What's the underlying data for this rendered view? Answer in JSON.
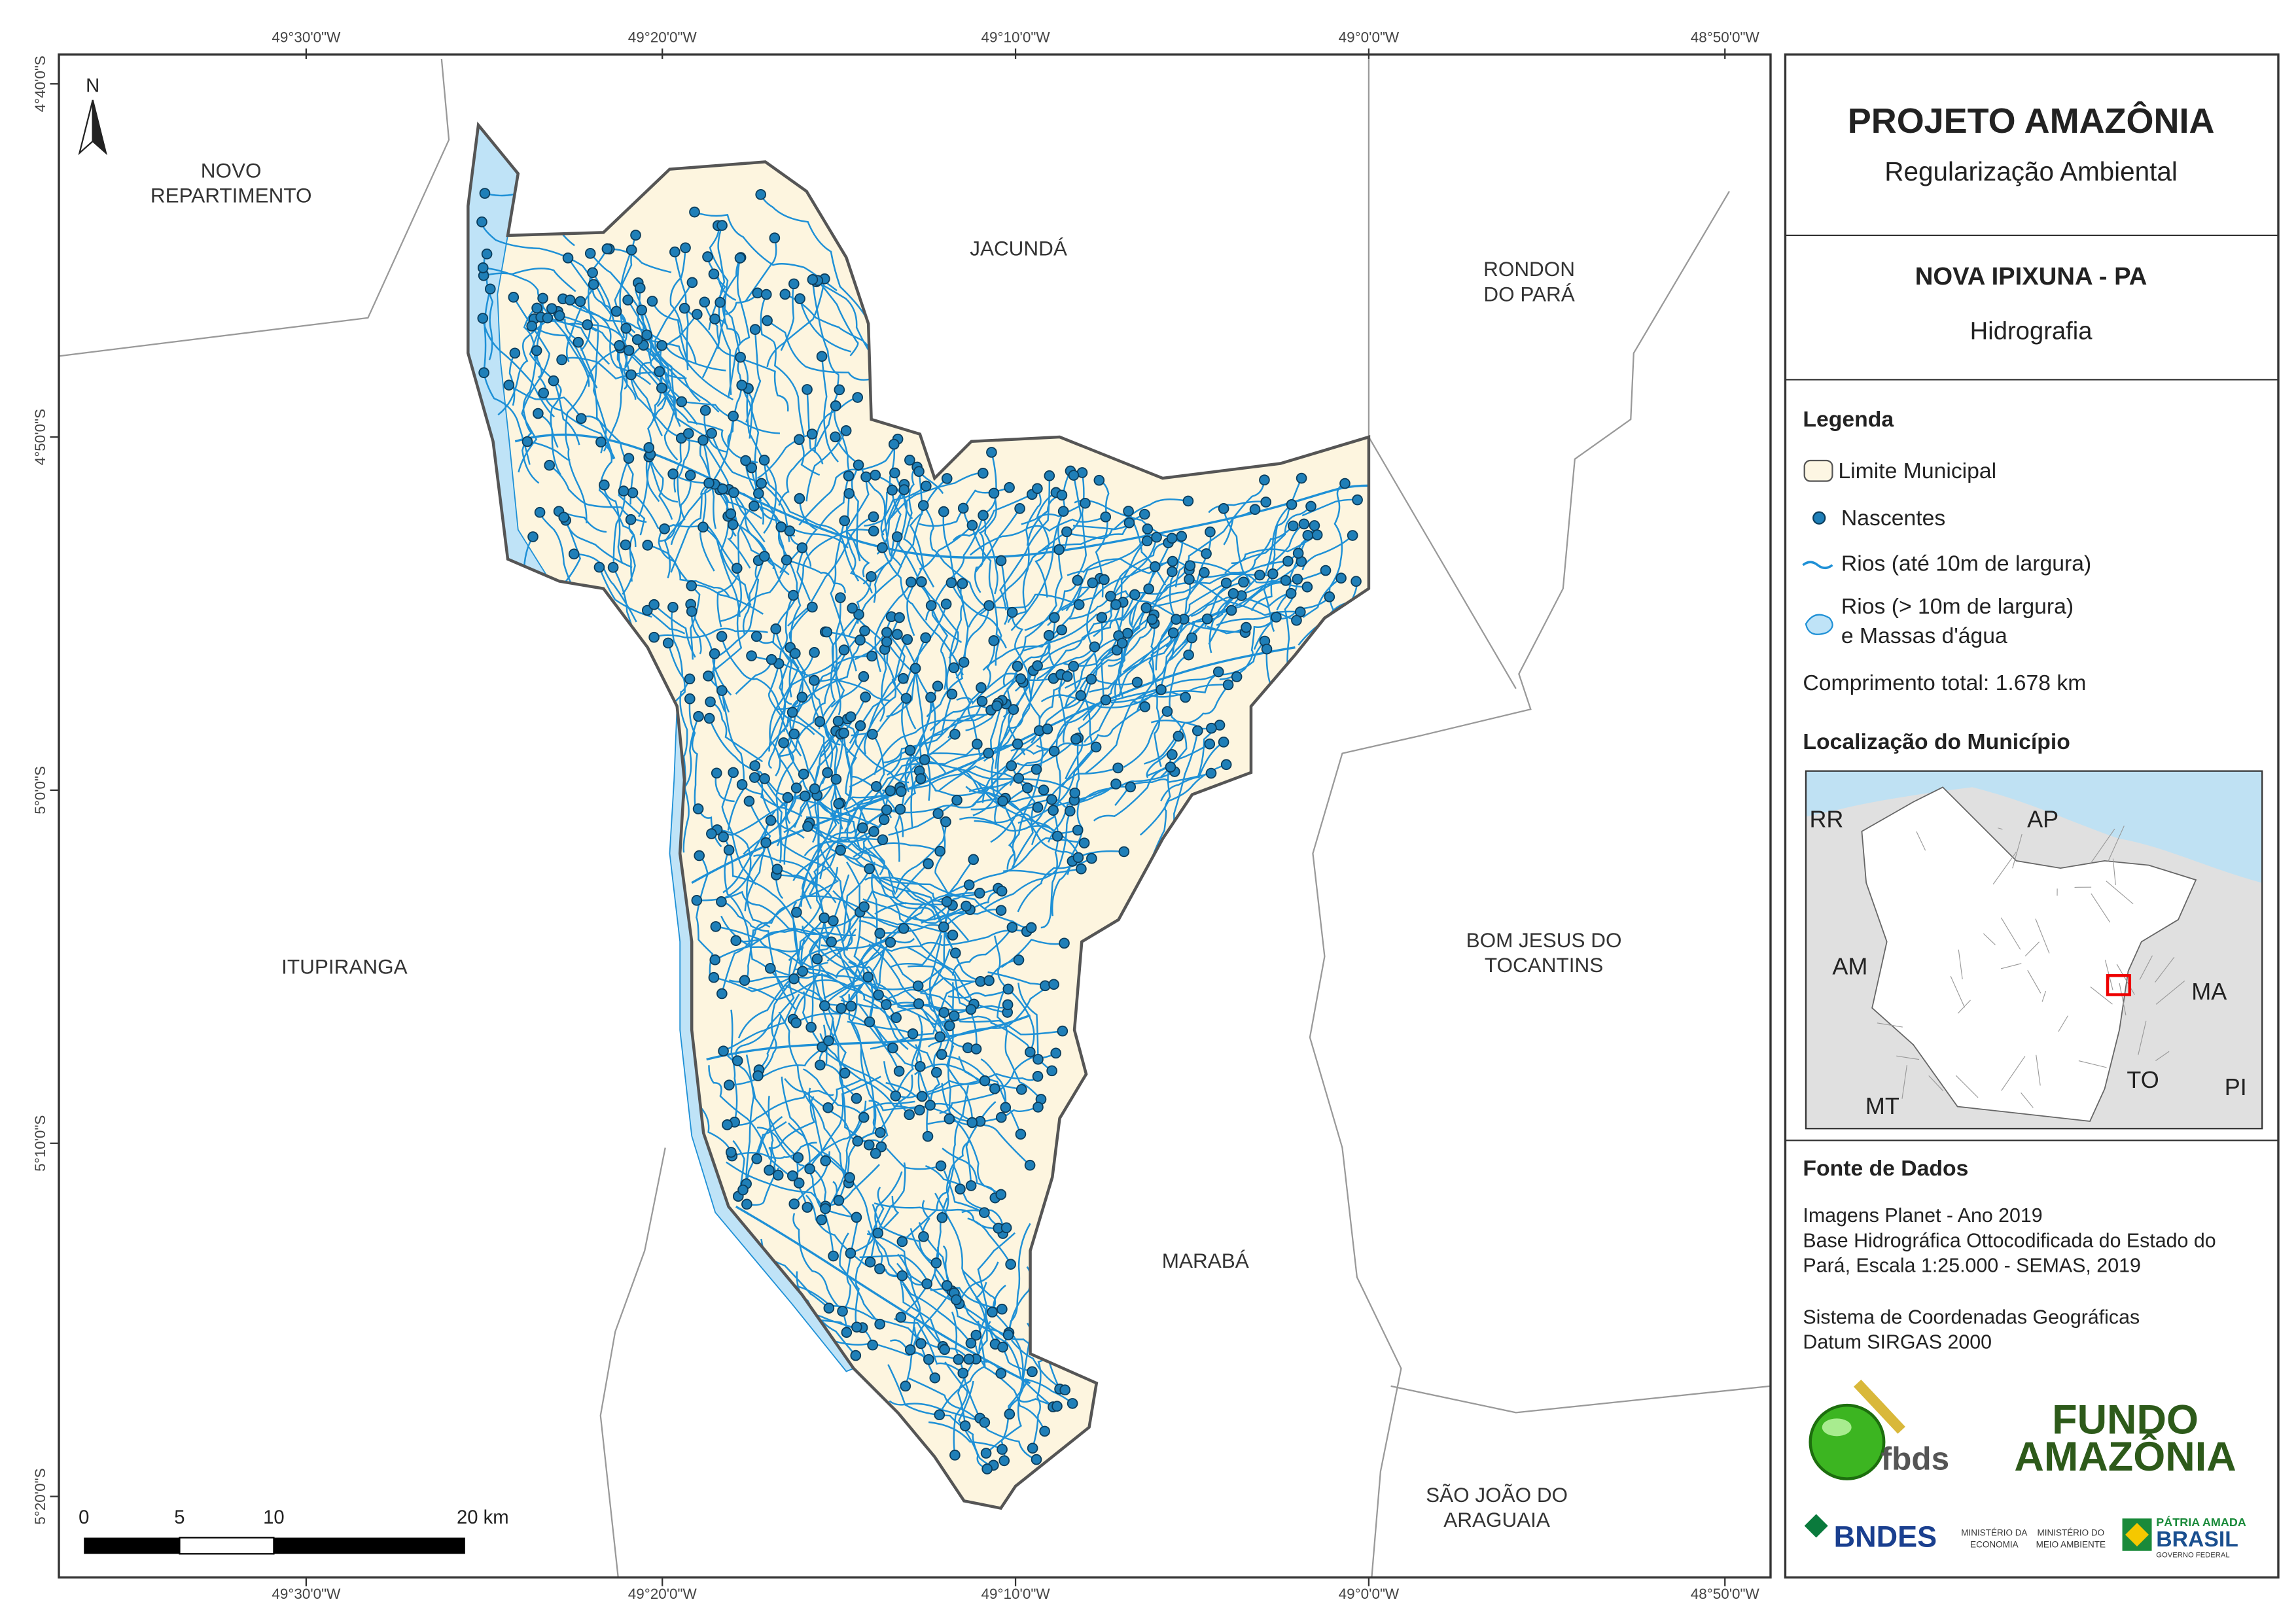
{
  "header": {
    "title": "PROJETO AMAZÔNIA",
    "subtitle": "Regularização Ambiental"
  },
  "map_info": {
    "municipality": "NOVA IPIXUNA - PA",
    "theme": "Hidrografia"
  },
  "legend": {
    "title": "Legenda",
    "items": [
      "Limite Municipal",
      "Nascentes",
      "Rios (até 10m de largura)"
    ],
    "water_item": [
      "Rios (> 10m de largura)",
      "e Massas d'água"
    ],
    "total_length": "Comprimento total:  1.678 km"
  },
  "location": {
    "title": "Localização do Município",
    "states": [
      "RR",
      "AP",
      "AM",
      "MA",
      "TO",
      "MT",
      "PI"
    ]
  },
  "sources": {
    "title": "Fonte de Dados",
    "lines": [
      "Imagens Planet - Ano 2019",
      "Base Hidrográfica Ottocodificada do Estado do",
      "Pará, Escala 1:25.000 - SEMAS, 2019"
    ],
    "crs": [
      "Sistema de Coordenadas Geográficas",
      "Datum SIRGAS 2000"
    ]
  },
  "logos": {
    "fbds": "fbds",
    "fundo": [
      "FUNDO",
      "AMAZÔNIA"
    ],
    "bndes": "BNDES",
    "ministries": [
      [
        "MINISTÉRIO DA",
        "ECONOMIA"
      ],
      [
        "MINISTÉRIO DO",
        "MEIO AMBIENTE"
      ]
    ],
    "brasil": [
      "PÁTRIA AMADA",
      "BRASIL",
      "GOVERNO FEDERAL"
    ]
  },
  "map": {
    "north": "N",
    "x_labels": [
      "49°30'0\"W",
      "49°20'0\"W",
      "49°10'0\"W",
      "49°0'0\"W",
      "48°50'0\"W"
    ],
    "y_labels": [
      "4°40'0\"S",
      "4°50'0\"S",
      "5°0'0\"S",
      "5°10'0\"S",
      "5°20'0\"S"
    ],
    "scale_labels": [
      "0",
      "5",
      "10",
      "20 km"
    ],
    "neighbors": [
      [
        "NOVO",
        "REPARTIMENTO"
      ],
      [
        "JACUNDÁ"
      ],
      [
        "RONDON",
        "DO PARÁ"
      ],
      [
        "ITUPIRANGA"
      ],
      [
        "BOM JESUS DO",
        "TOCANTINS"
      ],
      [
        "MARABÁ"
      ],
      [
        "SÃO JOÃO DO",
        "ARAGUAIA"
      ]
    ]
  }
}
